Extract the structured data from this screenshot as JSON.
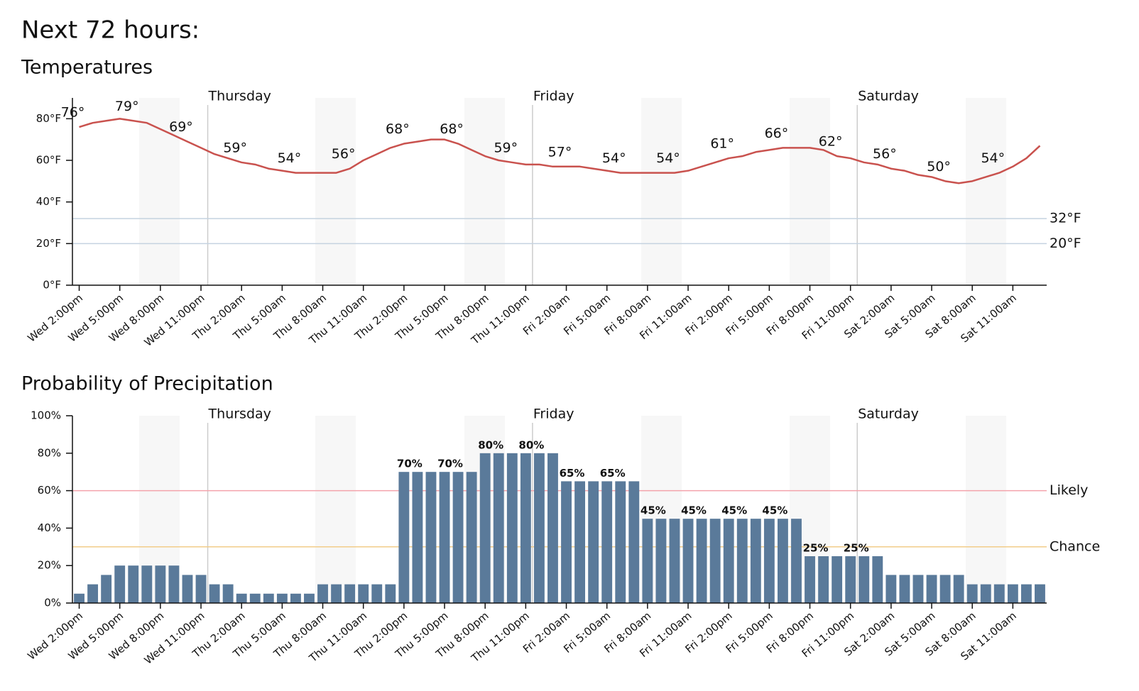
{
  "heading": "Next 72 hours:",
  "chart_data": [
    {
      "type": "line",
      "title": "Temperatures",
      "color": "#c9524e",
      "categories": [
        "Wed 2:00pm",
        null,
        null,
        "Wed 5:00pm",
        null,
        null,
        "Wed 8:00pm",
        null,
        null,
        "Wed 11:00pm",
        null,
        null,
        "Thu 2:00am",
        null,
        null,
        "Thu 5:00am",
        null,
        null,
        "Thu 8:00am",
        null,
        null,
        "Thu 11:00am",
        null,
        null,
        "Thu 2:00pm",
        null,
        null,
        "Thu 5:00pm",
        null,
        null,
        "Thu 8:00pm",
        null,
        null,
        "Thu 11:00pm",
        null,
        null,
        "Fri 2:00am",
        null,
        null,
        "Fri 5:00am",
        null,
        null,
        "Fri 8:00am",
        null,
        null,
        "Fri 11:00am",
        null,
        null,
        "Fri 2:00pm",
        null,
        null,
        "Fri 5:00pm",
        null,
        null,
        "Fri 8:00pm",
        null,
        null,
        "Fri 11:00pm",
        null,
        null,
        "Sat 2:00am",
        null,
        null,
        "Sat 5:00am",
        null,
        null,
        "Sat 8:00am",
        null,
        null,
        "Sat 11:00am",
        null,
        null
      ],
      "values": [
        76,
        78,
        79,
        80,
        79,
        78,
        75,
        72,
        69,
        66,
        63,
        61,
        59,
        58,
        56,
        55,
        54,
        54,
        54,
        54,
        56,
        60,
        63,
        66,
        68,
        69,
        70,
        70,
        68,
        65,
        62,
        60,
        59,
        58,
        58,
        57,
        57,
        57,
        56,
        55,
        54,
        54,
        54,
        54,
        54,
        55,
        57,
        59,
        61,
        62,
        64,
        65,
        66,
        66,
        66,
        65,
        62,
        61,
        59,
        58,
        56,
        55,
        53,
        52,
        50,
        49,
        50,
        52,
        54,
        57,
        61,
        67
      ],
      "value_labels": [
        "76°",
        null,
        null,
        null,
        "79°",
        null,
        null,
        null,
        "69°",
        null,
        null,
        null,
        "59°",
        null,
        null,
        null,
        "54°",
        null,
        null,
        null,
        "56°",
        null,
        null,
        null,
        "68°",
        null,
        null,
        null,
        "68°",
        null,
        null,
        null,
        "59°",
        null,
        null,
        null,
        "57°",
        null,
        null,
        null,
        "54°",
        null,
        null,
        null,
        "54°",
        null,
        null,
        null,
        "61°",
        null,
        null,
        null,
        "66°",
        null,
        null,
        null,
        "62°",
        null,
        null,
        null,
        "56°",
        null,
        null,
        null,
        "50°",
        null,
        null,
        null,
        "54°",
        null,
        null,
        null
      ],
      "ylim": [
        0,
        90
      ],
      "yticks": [
        {
          "value": 0,
          "label": "0°F"
        },
        {
          "value": 20,
          "label": "20°F"
        },
        {
          "value": 40,
          "label": "40°F"
        },
        {
          "value": 60,
          "label": "60°F"
        },
        {
          "value": 80,
          "label": "80°F"
        }
      ],
      "reference_lines": [
        {
          "value": 32,
          "label": "32°F",
          "color": "#c5d3e0",
          "text_color": "#1b3a5b"
        },
        {
          "value": 20,
          "label": "20°F",
          "color": "#c5d3e0",
          "text_color": "#1b3a5b"
        }
      ],
      "day_markers": [
        {
          "label": "Thursday",
          "index": 10
        },
        {
          "label": "Friday",
          "index": 34
        },
        {
          "label": "Saturday",
          "index": 58
        }
      ]
    },
    {
      "type": "bar",
      "title": "Probability of Precipitation",
      "color": "#5a7a9a",
      "categories": [
        "Wed 2:00pm",
        null,
        null,
        "Wed 5:00pm",
        null,
        null,
        "Wed 8:00pm",
        null,
        null,
        "Wed 11:00pm",
        null,
        null,
        "Thu 2:00am",
        null,
        null,
        "Thu 5:00am",
        null,
        null,
        "Thu 8:00am",
        null,
        null,
        "Thu 11:00am",
        null,
        null,
        "Thu 2:00pm",
        null,
        null,
        "Thu 5:00pm",
        null,
        null,
        "Thu 8:00pm",
        null,
        null,
        "Thu 11:00pm",
        null,
        null,
        "Fri 2:00am",
        null,
        null,
        "Fri 5:00am",
        null,
        null,
        "Fri 8:00am",
        null,
        null,
        "Fri 11:00am",
        null,
        null,
        "Fri 2:00pm",
        null,
        null,
        "Fri 5:00pm",
        null,
        null,
        "Fri 8:00pm",
        null,
        null,
        "Fri 11:00pm",
        null,
        null,
        "Sat 2:00am",
        null,
        null,
        "Sat 5:00am",
        null,
        null,
        "Sat 8:00am",
        null,
        null,
        "Sat 11:00am",
        null,
        null
      ],
      "values": [
        5,
        10,
        15,
        20,
        20,
        20,
        20,
        20,
        15,
        15,
        10,
        10,
        5,
        5,
        5,
        5,
        5,
        5,
        10,
        10,
        10,
        10,
        10,
        10,
        70,
        70,
        70,
        70,
        70,
        70,
        80,
        80,
        80,
        80,
        80,
        80,
        65,
        65,
        65,
        65,
        65,
        65,
        45,
        45,
        45,
        45,
        45,
        45,
        45,
        45,
        45,
        45,
        45,
        45,
        25,
        25,
        25,
        25,
        25,
        25,
        15,
        15,
        15,
        15,
        15,
        15,
        10,
        10,
        10,
        10,
        10,
        10
      ],
      "value_labels": [
        null,
        null,
        null,
        null,
        null,
        null,
        null,
        null,
        null,
        null,
        null,
        null,
        null,
        null,
        null,
        null,
        null,
        null,
        null,
        null,
        null,
        null,
        null,
        null,
        "70%",
        null,
        null,
        "70%",
        null,
        null,
        "80%",
        null,
        null,
        "80%",
        null,
        null,
        "65%",
        null,
        null,
        "65%",
        null,
        null,
        "45%",
        null,
        null,
        "45%",
        null,
        null,
        "45%",
        null,
        null,
        "45%",
        null,
        null,
        "25%",
        null,
        null,
        "25%",
        null,
        null,
        null,
        null,
        null,
        null,
        null,
        null,
        null,
        null,
        null,
        null,
        null,
        null
      ],
      "ylim": [
        0,
        100
      ],
      "yticks": [
        {
          "value": 0,
          "label": "0%"
        },
        {
          "value": 20,
          "label": "20%"
        },
        {
          "value": 40,
          "label": "40%"
        },
        {
          "value": 60,
          "label": "60%"
        },
        {
          "value": 80,
          "label": "80%"
        },
        {
          "value": 100,
          "label": "100%"
        }
      ],
      "reference_lines": [
        {
          "value": 60,
          "label": "Likely",
          "color": "#f4a3ab",
          "text_color": "#5a1010"
        },
        {
          "value": 30,
          "label": "Chance",
          "color": "#f2cc8a",
          "text_color": "#5a3a00"
        }
      ],
      "day_markers": [
        {
          "label": "Thursday",
          "index": 10
        },
        {
          "label": "Friday",
          "index": 34
        },
        {
          "label": "Saturday",
          "index": 58
        }
      ]
    }
  ]
}
